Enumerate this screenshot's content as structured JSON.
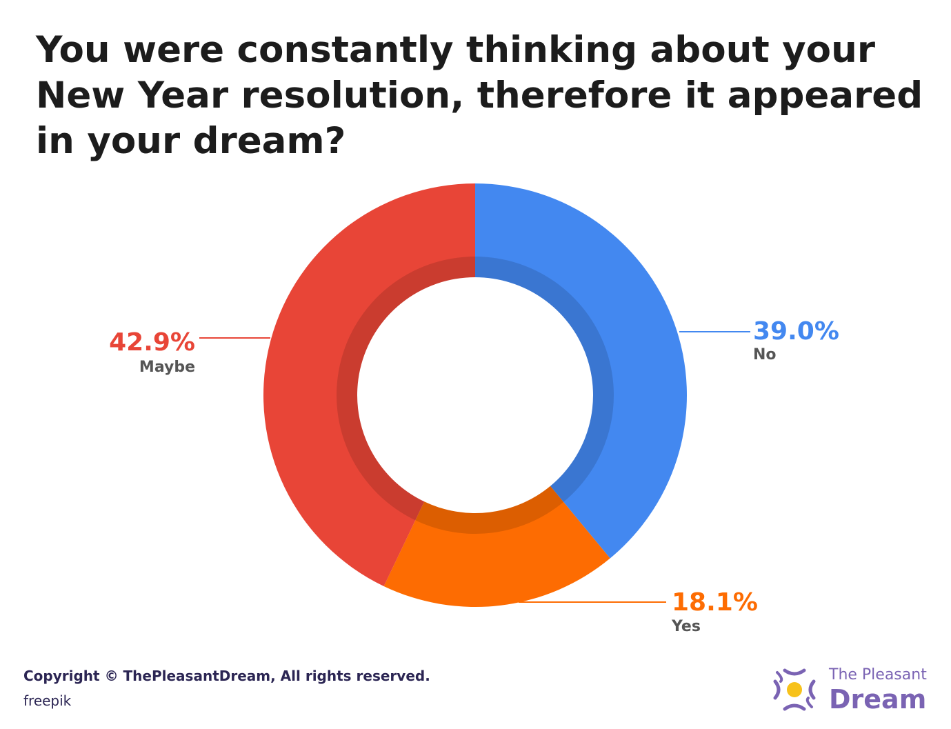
{
  "chart_data": {
    "type": "pie",
    "title": "You were constantly thinking about your New Year resolution, therefore it appeared in your dream?",
    "slices": [
      {
        "label": "No",
        "value": 39.0,
        "display": "39.0%",
        "color": "#4388f0"
      },
      {
        "label": "Yes",
        "value": 18.1,
        "display": "18.1%",
        "color": "#fd6c02"
      },
      {
        "label": "Maybe",
        "value": 42.9,
        "display": "42.9%",
        "color": "#e84537"
      }
    ],
    "donut": true
  },
  "footer": {
    "copyright": "Copyright © ThePleasantDream, All rights reserved.",
    "credit": "freepik"
  },
  "logo": {
    "line1": "The Pleasant",
    "line2": "Dream"
  }
}
